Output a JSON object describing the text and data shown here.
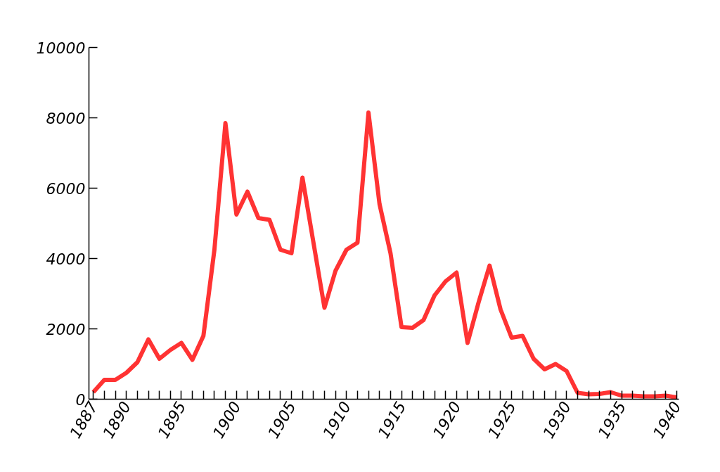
{
  "chart_data": {
    "type": "line",
    "x": [
      1887,
      1888,
      1889,
      1890,
      1891,
      1892,
      1893,
      1894,
      1895,
      1896,
      1897,
      1898,
      1899,
      1900,
      1901,
      1902,
      1903,
      1904,
      1905,
      1906,
      1907,
      1908,
      1909,
      1910,
      1911,
      1912,
      1913,
      1914,
      1915,
      1916,
      1917,
      1918,
      1919,
      1920,
      1921,
      1922,
      1923,
      1924,
      1925,
      1926,
      1927,
      1928,
      1929,
      1930,
      1931,
      1932,
      1933,
      1934,
      1935,
      1936,
      1937,
      1938,
      1939,
      1940
    ],
    "series": [
      {
        "color": "#ff3333",
        "values": [
          200,
          550,
          550,
          750,
          1050,
          1700,
          1150,
          1400,
          1600,
          1120,
          1800,
          4250,
          7850,
          5250,
          5900,
          5150,
          5100,
          4250,
          4150,
          6300,
          4450,
          2600,
          3650,
          4250,
          4450,
          8150,
          5550,
          4150,
          2050,
          2030,
          2250,
          2950,
          3350,
          3600,
          1600,
          2750,
          3800,
          2550,
          1750,
          1800,
          1150,
          850,
          1000,
          800,
          180,
          140,
          150,
          200,
          100,
          100,
          80,
          80,
          100,
          50
        ]
      }
    ],
    "xlim": [
      1886.6,
      1940.2
    ],
    "xticks": [
      1887,
      {
        "value": 1888,
        "label": null
      },
      {
        "value": 1889,
        "label": null
      },
      1890,
      {
        "value": 1891,
        "label": null
      },
      {
        "value": 1892,
        "label": null
      },
      {
        "value": 1893,
        "label": null
      },
      {
        "value": 1894,
        "label": null
      },
      1895,
      {
        "value": 1896,
        "label": null
      },
      {
        "value": 1897,
        "label": null
      },
      {
        "value": 1898,
        "label": null
      },
      {
        "value": 1899,
        "label": null
      },
      1900,
      {
        "value": 1901,
        "label": null
      },
      {
        "value": 1902,
        "label": null
      },
      {
        "value": 1903,
        "label": null
      },
      {
        "value": 1904,
        "label": null
      },
      1905,
      {
        "value": 1906,
        "label": null
      },
      {
        "value": 1907,
        "label": null
      },
      {
        "value": 1908,
        "label": null
      },
      {
        "value": 1909,
        "label": null
      },
      1910,
      {
        "value": 1911,
        "label": null
      },
      {
        "value": 1912,
        "label": null
      },
      {
        "value": 1913,
        "label": null
      },
      {
        "value": 1914,
        "label": null
      },
      1915,
      {
        "value": 1916,
        "label": null
      },
      {
        "value": 1917,
        "label": null
      },
      {
        "value": 1918,
        "label": null
      },
      {
        "value": 1919,
        "label": null
      },
      1920,
      {
        "value": 1921,
        "label": null
      },
      {
        "value": 1922,
        "label": null
      },
      {
        "value": 1923,
        "label": null
      },
      {
        "value": 1924,
        "label": null
      },
      1925,
      {
        "value": 1926,
        "label": null
      },
      {
        "value": 1927,
        "label": null
      },
      {
        "value": 1928,
        "label": null
      },
      {
        "value": 1929,
        "label": null
      },
      1930,
      {
        "value": 1931,
        "label": null
      },
      {
        "value": 1932,
        "label": null
      },
      {
        "value": 1933,
        "label": null
      },
      {
        "value": 1934,
        "label": null
      },
      1935,
      {
        "value": 1936,
        "label": null
      },
      {
        "value": 1937,
        "label": null
      },
      {
        "value": 1938,
        "label": null
      },
      {
        "value": 1939,
        "label": null
      },
      1940
    ],
    "ylim": [
      0,
      10000
    ],
    "yticks": [
      0,
      2000,
      4000,
      6000,
      8000,
      10000
    ],
    "grid": false,
    "line_style": "solid"
  }
}
